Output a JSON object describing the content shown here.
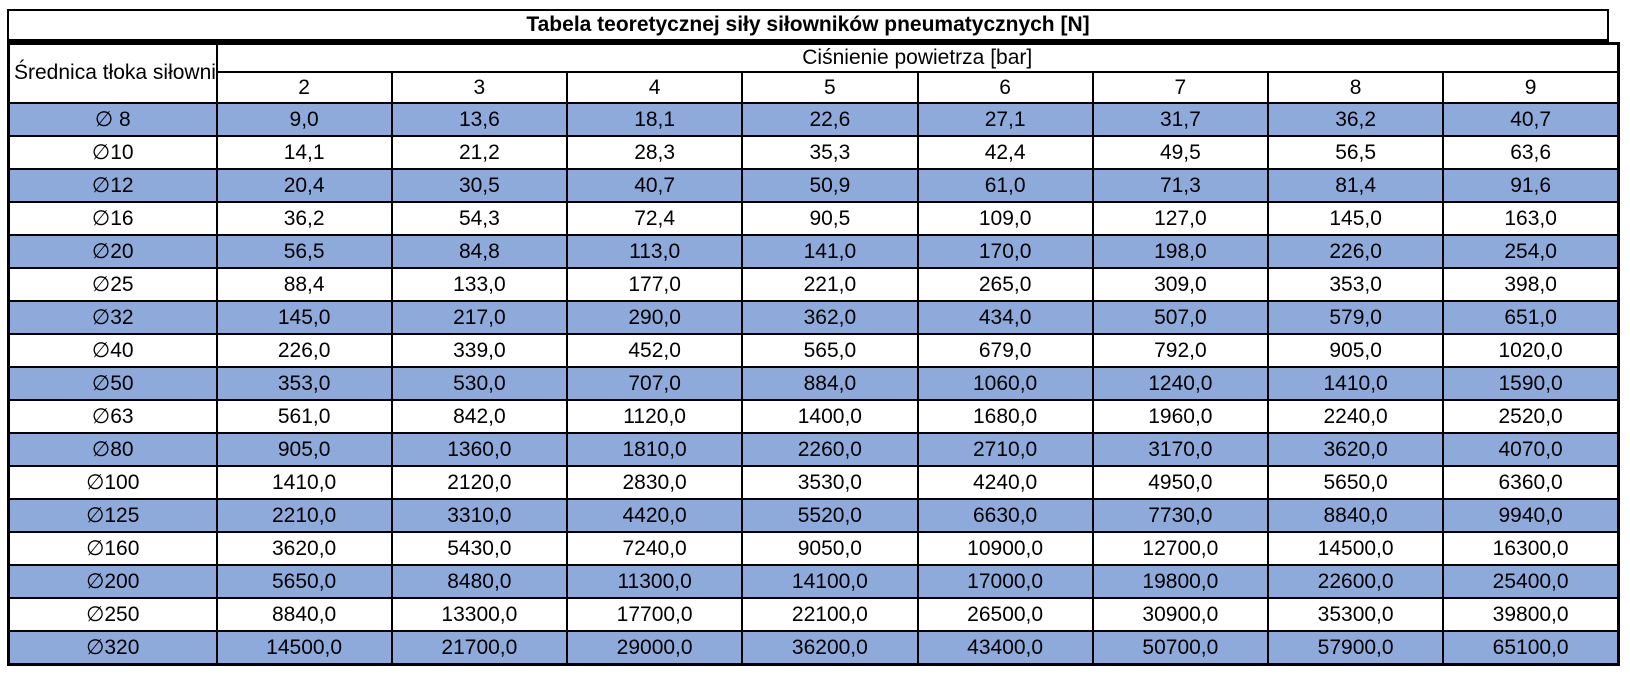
{
  "colors": {
    "band_blue": "#8eaadb",
    "band_white": "#ffffff",
    "border": "#000000"
  },
  "chart_data": {
    "type": "table",
    "title": "Tabela teoretycznej siły siłowników pneumatycznych [N]",
    "row_header": "Średnica tłoka siłownika",
    "column_group_header": "Ciśnienie powietrza [bar]",
    "columns": [
      "2",
      "3",
      "4",
      "5",
      "6",
      "7",
      "8",
      "9"
    ],
    "rows": [
      {
        "diameter": "∅ 8",
        "values": [
          "9,0",
          "13,6",
          "18,1",
          "22,6",
          "27,1",
          "31,7",
          "36,2",
          "40,7"
        ]
      },
      {
        "diameter": "∅10",
        "values": [
          "14,1",
          "21,2",
          "28,3",
          "35,3",
          "42,4",
          "49,5",
          "56,5",
          "63,6"
        ]
      },
      {
        "diameter": "∅12",
        "values": [
          "20,4",
          "30,5",
          "40,7",
          "50,9",
          "61,0",
          "71,3",
          "81,4",
          "91,6"
        ]
      },
      {
        "diameter": "∅16",
        "values": [
          "36,2",
          "54,3",
          "72,4",
          "90,5",
          "109,0",
          "127,0",
          "145,0",
          "163,0"
        ]
      },
      {
        "diameter": "∅20",
        "values": [
          "56,5",
          "84,8",
          "113,0",
          "141,0",
          "170,0",
          "198,0",
          "226,0",
          "254,0"
        ]
      },
      {
        "diameter": "∅25",
        "values": [
          "88,4",
          "133,0",
          "177,0",
          "221,0",
          "265,0",
          "309,0",
          "353,0",
          "398,0"
        ]
      },
      {
        "diameter": "∅32",
        "values": [
          "145,0",
          "217,0",
          "290,0",
          "362,0",
          "434,0",
          "507,0",
          "579,0",
          "651,0"
        ]
      },
      {
        "diameter": "∅40",
        "values": [
          "226,0",
          "339,0",
          "452,0",
          "565,0",
          "679,0",
          "792,0",
          "905,0",
          "1020,0"
        ]
      },
      {
        "diameter": "∅50",
        "values": [
          "353,0",
          "530,0",
          "707,0",
          "884,0",
          "1060,0",
          "1240,0",
          "1410,0",
          "1590,0"
        ]
      },
      {
        "diameter": "∅63",
        "values": [
          "561,0",
          "842,0",
          "1120,0",
          "1400,0",
          "1680,0",
          "1960,0",
          "2240,0",
          "2520,0"
        ]
      },
      {
        "diameter": "∅80",
        "values": [
          "905,0",
          "1360,0",
          "1810,0",
          "2260,0",
          "2710,0",
          "3170,0",
          "3620,0",
          "4070,0"
        ]
      },
      {
        "diameter": "∅100",
        "values": [
          "1410,0",
          "2120,0",
          "2830,0",
          "3530,0",
          "4240,0",
          "4950,0",
          "5650,0",
          "6360,0"
        ]
      },
      {
        "diameter": "∅125",
        "values": [
          "2210,0",
          "3310,0",
          "4420,0",
          "5520,0",
          "6630,0",
          "7730,0",
          "8840,0",
          "9940,0"
        ]
      },
      {
        "diameter": "∅160",
        "values": [
          "3620,0",
          "5430,0",
          "7240,0",
          "9050,0",
          "10900,0",
          "12700,0",
          "14500,0",
          "16300,0"
        ]
      },
      {
        "diameter": "∅200",
        "values": [
          "5650,0",
          "8480,0",
          "11300,0",
          "14100,0",
          "17000,0",
          "19800,0",
          "22600,0",
          "25400,0"
        ]
      },
      {
        "diameter": "∅250",
        "values": [
          "8840,0",
          "13300,0",
          "17700,0",
          "22100,0",
          "26500,0",
          "30900,0",
          "35300,0",
          "39800,0"
        ]
      },
      {
        "diameter": "∅320",
        "values": [
          "14500,0",
          "21700,0",
          "29000,0",
          "36200,0",
          "43400,0",
          "50700,0",
          "57900,0",
          "65100,0"
        ]
      }
    ]
  }
}
